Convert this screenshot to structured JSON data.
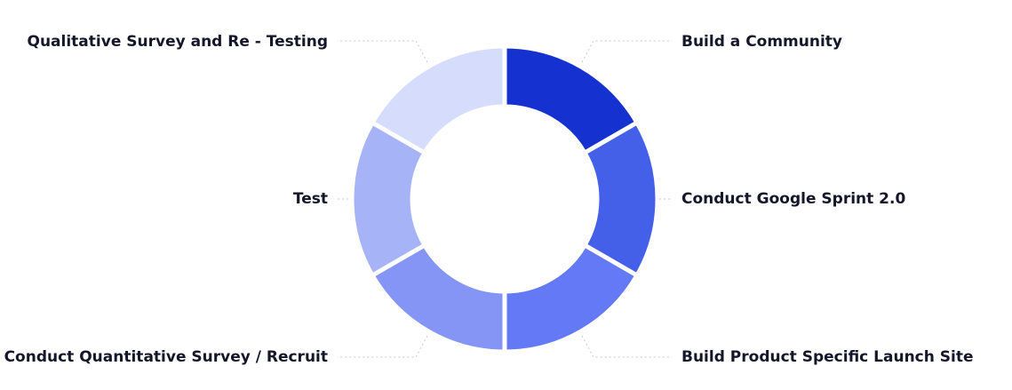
{
  "nodes": [
    {
      "label": "Build a Community",
      "color": "#1531d0"
    },
    {
      "label": "Conduct Google Sprint 2.0",
      "color": "#4560e8"
    },
    {
      "label": "Build Product Specific Launch Site",
      "color": "#6479f5"
    },
    {
      "label": "Conduct Quantitative Survey / Recruit",
      "color": "#8595f5"
    },
    {
      "label": "Test",
      "color": "#a7b3f7"
    },
    {
      "label": "Qualitative Survey and Re - Testing",
      "color": "#d5dcfc"
    }
  ]
}
